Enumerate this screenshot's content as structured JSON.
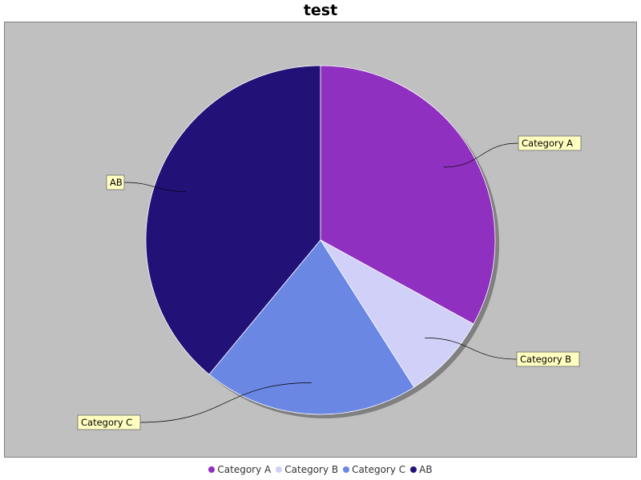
{
  "chart_data": {
    "type": "pie",
    "title": "test",
    "categories": [
      "Category A",
      "Category B",
      "Category C",
      "AB"
    ],
    "values": [
      33,
      8,
      20,
      39
    ],
    "colors": [
      "#9030c0",
      "#d0d0f8",
      "#6a87e4",
      "#221278"
    ],
    "background": "#c0c0c0",
    "label_color": "#ffffc0",
    "legend_position": "bottom"
  }
}
